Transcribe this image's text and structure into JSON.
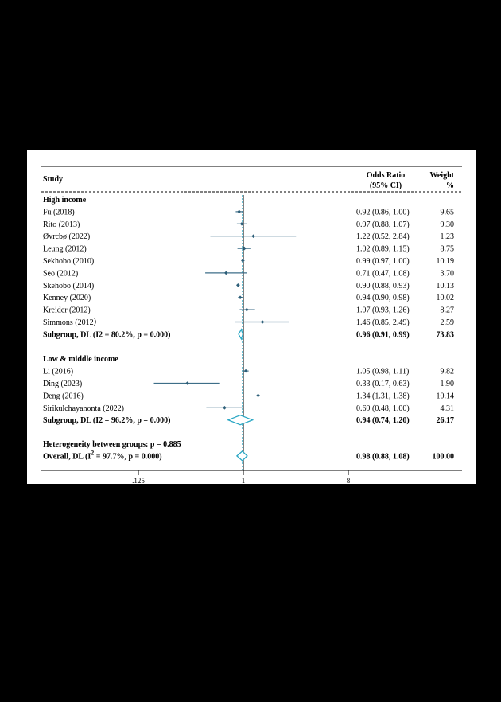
{
  "chart_data": {
    "type": "forest",
    "headers": {
      "study": "Study",
      "or_line1": "Odds Ratio",
      "or_line2": "(95% CI)",
      "weight_line1": "Weight",
      "weight_line2": "%"
    },
    "x_scale": "log2",
    "xlim": [
      0.125,
      8
    ],
    "ticks": [
      {
        "value": 0.125,
        "label": ".125"
      },
      {
        "value": 1,
        "label": "1"
      },
      {
        "value": 8,
        "label": "8"
      }
    ],
    "null_value": 1,
    "overall_value": 0.98,
    "groups": [
      {
        "title": "High income",
        "studies": [
          {
            "label": "Fu (2018)",
            "or": 0.92,
            "lo": 0.86,
            "hi": 1.0,
            "ci_text": "0.92 (0.86, 1.00)",
            "weight": "9.65"
          },
          {
            "label": "Rito (2013)",
            "or": 0.97,
            "lo": 0.88,
            "hi": 1.07,
            "ci_text": "0.97 (0.88, 1.07)",
            "weight": "9.30"
          },
          {
            "label": "Øvrcbø (2022)",
            "or": 1.22,
            "lo": 0.52,
            "hi": 2.84,
            "ci_text": "1.22 (0.52, 2.84)",
            "weight": "1.23"
          },
          {
            "label": "Leung (2012)",
            "or": 1.02,
            "lo": 0.89,
            "hi": 1.15,
            "ci_text": "1.02 (0.89, 1.15)",
            "weight": "8.75"
          },
          {
            "label": "Sekhobo (2010)",
            "or": 0.99,
            "lo": 0.97,
            "hi": 1.0,
            "ci_text": "0.99 (0.97, 1.00)",
            "weight": "10.19"
          },
          {
            "label": "Seo (2012)",
            "or": 0.71,
            "lo": 0.47,
            "hi": 1.08,
            "ci_text": "0.71 (0.47, 1.08)",
            "weight": "3.70"
          },
          {
            "label": "Skehobo (2014)",
            "or": 0.9,
            "lo": 0.88,
            "hi": 0.93,
            "ci_text": "0.90 (0.88, 0.93)",
            "weight": "10.13"
          },
          {
            "label": "Kenney (2020)",
            "or": 0.94,
            "lo": 0.9,
            "hi": 0.98,
            "ci_text": "0.94 (0.90, 0.98)",
            "weight": "10.02"
          },
          {
            "label": "Kreider (2012)",
            "or": 1.07,
            "lo": 0.93,
            "hi": 1.26,
            "ci_text": "1.07 (0.93, 1.26)",
            "weight": "8.27"
          },
          {
            "label": "Simmons (2012）",
            "or": 1.46,
            "lo": 0.85,
            "hi": 2.49,
            "ci_text": "1.46 (0.85, 2.49)",
            "weight": "2.59"
          }
        ],
        "subgroup": {
          "label": "Subgroup, DL (I2 = 80.2%, p = 0.000)",
          "or": 0.96,
          "lo": 0.91,
          "hi": 0.99,
          "ci_text": "0.96 (0.91, 0.99)",
          "weight": "73.83"
        }
      },
      {
        "title": "Low & middle income",
        "studies": [
          {
            "label": "Li (2016)",
            "or": 1.05,
            "lo": 0.98,
            "hi": 1.11,
            "ci_text": "1.05 (0.98, 1.11)",
            "weight": "9.82"
          },
          {
            "label": "Ding (2023)",
            "or": 0.33,
            "lo": 0.17,
            "hi": 0.63,
            "ci_text": "0.33 (0.17, 0.63)",
            "weight": "1.90"
          },
          {
            "label": "Deng (2016)",
            "or": 1.34,
            "lo": 1.31,
            "hi": 1.38,
            "ci_text": "1.34 (1.31, 1.38)",
            "weight": "10.14"
          },
          {
            "label": "Sirikulchayanonta (2022)",
            "or": 0.69,
            "lo": 0.48,
            "hi": 1.0,
            "ci_text": "0.69 (0.48, 1.00)",
            "weight": "4.31"
          }
        ],
        "subgroup": {
          "label": "Subgroup, DL (I2 = 96.2%, p = 0.000)",
          "or": 0.94,
          "lo": 0.74,
          "hi": 1.2,
          "ci_text": "0.94 (0.74, 1.20)",
          "weight": "26.17"
        }
      }
    ],
    "heterogeneity": "Heterogeneity between groups: p = 0.885",
    "overall": {
      "label_prefix": "Overall, DL (I",
      "label_sup": "2",
      "label_suffix": " = 97.7%, p = 0.000)",
      "or": 0.98,
      "lo": 0.88,
      "hi": 1.08,
      "ci_text": "0.98 (0.88, 1.08)",
      "weight": "100.00"
    },
    "colors": {
      "ci_line": "#3d6e88",
      "point": "#2e5f79",
      "diamond": "#2aa7c4",
      "text": "#000000",
      "axis": "#000000"
    }
  }
}
